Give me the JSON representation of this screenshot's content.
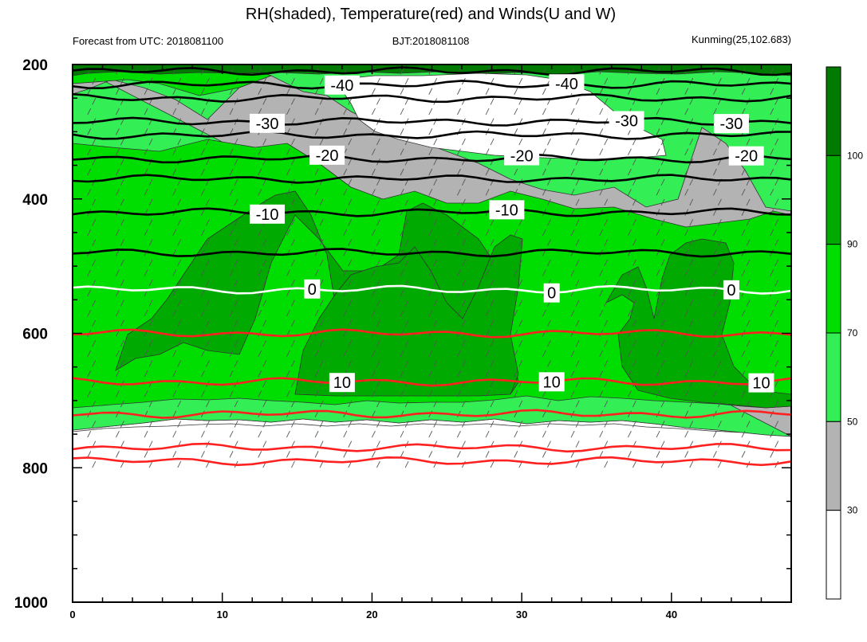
{
  "chart_data": {
    "type": "contour",
    "title": "RH(shaded), Temperature(red) and Winds(U and W)",
    "subtitle_left": "Forecast from UTC: 2018081100",
    "subtitle_center": "BJT:2018081108",
    "subtitle_right": "Kunming(25,102.683)",
    "x_range": [
      0,
      48
    ],
    "x_ticks": [
      "0",
      "10",
      "20",
      "30",
      "40"
    ],
    "y_range": [
      200,
      1000
    ],
    "y_ticks": [
      "200",
      "400",
      "600",
      "800",
      "1000"
    ],
    "colorbar": {
      "labels": [
        "30",
        "50",
        "70",
        "90",
        "100"
      ],
      "levels": [
        {
          "name": "rh-below-30",
          "color": "#ffffff"
        },
        {
          "name": "rh-30-50",
          "color": "#b3b3b3"
        },
        {
          "name": "rh-50-70",
          "color": "#33ee55"
        },
        {
          "name": "rh-70-90",
          "color": "#00dd00"
        },
        {
          "name": "rh-90-100",
          "color": "#00aa00"
        },
        {
          "name": "rh-above-100",
          "color": "#007a00"
        }
      ]
    },
    "temperature_contours": [
      {
        "value": -40,
        "label": "-40",
        "pressure": 230,
        "color": "#000000",
        "labels_at": [
          18,
          33
        ]
      },
      {
        "value": -30,
        "label": "-30",
        "pressure": 285,
        "color": "#000000",
        "labels_at": [
          13,
          37,
          44
        ]
      },
      {
        "value": -20,
        "label": "-20",
        "pressure": 340,
        "color": "#000000",
        "labels_at": [
          17,
          30,
          45
        ]
      },
      {
        "value": -10,
        "label": "-10",
        "pressure": 420,
        "color": "#000000",
        "labels_at": [
          13,
          29
        ]
      },
      {
        "value": 0,
        "label": "0",
        "pressure": 535,
        "color": "#ffffff",
        "labels_at": [
          16,
          32,
          44
        ]
      },
      {
        "value": 10,
        "label": "10",
        "pressure": 672,
        "color": "#ff2020",
        "labels_at": [
          18,
          32,
          46
        ]
      }
    ],
    "red_isotherms_unlabeled": [
      600,
      720,
      770,
      790
    ],
    "black_isotherms_unlabeled": [
      210,
      250,
      305,
      370,
      480
    ],
    "surface_pressure": 805
  }
}
